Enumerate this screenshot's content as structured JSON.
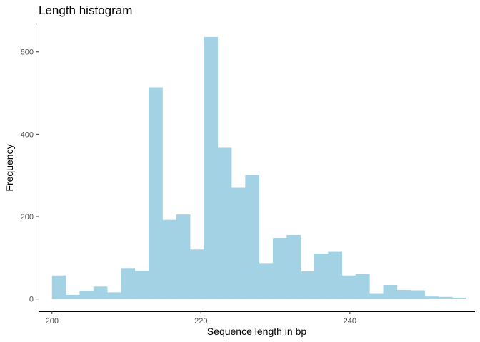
{
  "chart_data": {
    "type": "bar",
    "title": "Length histogram",
    "xlabel": "Sequence length in bp",
    "ylabel": "Frequency",
    "xlim": [
      198.2,
      256.8
    ],
    "ylim": [
      -30,
      667
    ],
    "x_ticks": [
      200,
      220,
      240
    ],
    "y_ticks": [
      0,
      200,
      400,
      600
    ],
    "grid": false,
    "bar_color": "#A2D2E3",
    "bin_width": 1.8533,
    "bins": [
      {
        "start": 200.0,
        "end": 201.85,
        "value": 57
      },
      {
        "start": 201.85,
        "end": 203.71,
        "value": 10
      },
      {
        "start": 203.71,
        "end": 205.56,
        "value": 20
      },
      {
        "start": 205.56,
        "end": 207.41,
        "value": 30
      },
      {
        "start": 207.41,
        "end": 209.27,
        "value": 16
      },
      {
        "start": 209.27,
        "end": 211.12,
        "value": 75
      },
      {
        "start": 211.12,
        "end": 212.97,
        "value": 68
      },
      {
        "start": 212.97,
        "end": 214.83,
        "value": 514
      },
      {
        "start": 214.83,
        "end": 216.68,
        "value": 192
      },
      {
        "start": 216.68,
        "end": 218.53,
        "value": 205
      },
      {
        "start": 218.53,
        "end": 220.39,
        "value": 120
      },
      {
        "start": 220.39,
        "end": 222.24,
        "value": 636
      },
      {
        "start": 222.24,
        "end": 224.09,
        "value": 367
      },
      {
        "start": 224.09,
        "end": 225.95,
        "value": 270
      },
      {
        "start": 225.95,
        "end": 227.8,
        "value": 301
      },
      {
        "start": 227.8,
        "end": 229.65,
        "value": 87
      },
      {
        "start": 229.65,
        "end": 231.51,
        "value": 148
      },
      {
        "start": 231.51,
        "end": 233.36,
        "value": 155
      },
      {
        "start": 233.36,
        "end": 235.21,
        "value": 67
      },
      {
        "start": 235.21,
        "end": 237.07,
        "value": 110
      },
      {
        "start": 237.07,
        "end": 238.92,
        "value": 116
      },
      {
        "start": 238.92,
        "end": 240.77,
        "value": 57
      },
      {
        "start": 240.77,
        "end": 242.63,
        "value": 61
      },
      {
        "start": 242.63,
        "end": 244.48,
        "value": 14
      },
      {
        "start": 244.48,
        "end": 246.33,
        "value": 34
      },
      {
        "start": 246.33,
        "end": 248.19,
        "value": 22
      },
      {
        "start": 248.19,
        "end": 250.04,
        "value": 21
      },
      {
        "start": 250.04,
        "end": 251.89,
        "value": 6
      },
      {
        "start": 251.89,
        "end": 253.75,
        "value": 5
      },
      {
        "start": 253.75,
        "end": 255.6,
        "value": 3
      }
    ]
  }
}
